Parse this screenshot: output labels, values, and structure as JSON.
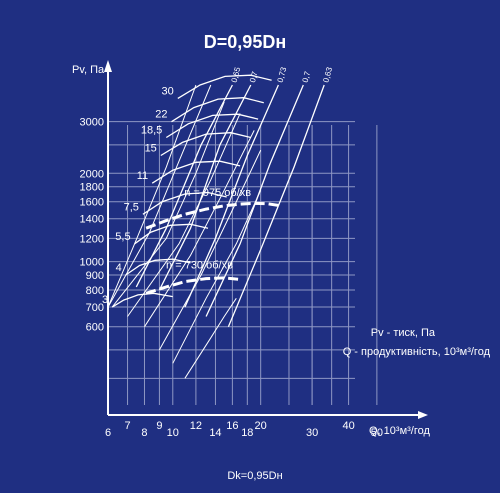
{
  "chart_data": {
    "type": "line",
    "title": "D=0,95Dн",
    "xlabel": "Q, 10³м³/год",
    "ylabel": "Pv, Па",
    "x_scale": "log",
    "y_scale": "log",
    "xlim": [
      6,
      60
    ],
    "ylim": [
      300,
      4000
    ],
    "grid": true,
    "x_ticks": [
      {
        "value": 6,
        "label": "6",
        "row": 0
      },
      {
        "value": 7,
        "label": "7",
        "row": -1
      },
      {
        "value": 8,
        "label": "8",
        "row": 0
      },
      {
        "value": 9,
        "label": "9",
        "row": -1
      },
      {
        "value": 10,
        "label": "10",
        "row": 0
      },
      {
        "value": 12,
        "label": "12",
        "row": -1
      },
      {
        "value": 14,
        "label": "14",
        "row": 0
      },
      {
        "value": 16,
        "label": "16",
        "row": -1
      },
      {
        "value": 18,
        "label": "18",
        "row": 0
      },
      {
        "value": 20,
        "label": "20",
        "row": -1
      },
      {
        "value": 30,
        "label": "30",
        "row": 0
      },
      {
        "value": 40,
        "label": "40",
        "row": -1
      },
      {
        "value": 50,
        "label": "50",
        "row": 0
      }
    ],
    "y_ticks": [
      {
        "value": 600,
        "label": "600"
      },
      {
        "value": 700,
        "label": "700"
      },
      {
        "value": 800,
        "label": "800"
      },
      {
        "value": 900,
        "label": "900"
      },
      {
        "value": 1000,
        "label": "1000"
      },
      {
        "value": 1200,
        "label": "1200"
      },
      {
        "value": 1400,
        "label": "1400"
      },
      {
        "value": 1600,
        "label": "1600"
      },
      {
        "value": 1800,
        "label": "1800"
      },
      {
        "value": 2000,
        "label": "2000"
      },
      {
        "value": 3000,
        "label": "3000"
      }
    ],
    "legend_lines": [
      "Pv - тиск, Па",
      "Q - продуктивність, 10³м³/год"
    ],
    "footer": "Dk=0,95Dн",
    "series": [
      {
        "name": "n = 975 об/хв",
        "style": "dashed",
        "x": [
          8.1,
          9.5,
          11,
          13,
          15,
          17,
          19,
          21,
          23
        ],
        "y": [
          1300,
          1380,
          1450,
          1510,
          1550,
          1570,
          1580,
          1575,
          1555
        ]
      },
      {
        "name": "n = 730 об/хв",
        "style": "dashed",
        "x": [
          8.1,
          9.5,
          11,
          13,
          15,
          17
        ],
        "y": [
          780,
          820,
          855,
          875,
          880,
          870
        ]
      }
    ],
    "power_curves": [
      {
        "label": "3",
        "x": [
          6.2,
          6.8,
          7.6,
          8.6,
          10
        ],
        "y": [
          700,
          740,
          770,
          780,
          760
        ]
      },
      {
        "label": "4",
        "x": [
          6.9,
          7.7,
          8.7,
          10,
          11.5
        ],
        "y": [
          900,
          970,
          1010,
          1020,
          990
        ]
      },
      {
        "label": "5,5",
        "x": [
          7.4,
          8.4,
          9.8,
          11.5,
          13.2
        ],
        "y": [
          1150,
          1260,
          1330,
          1340,
          1300
        ]
      },
      {
        "label": "7,5",
        "x": [
          7.9,
          9.2,
          11,
          13.2,
          15.3
        ],
        "y": [
          1450,
          1600,
          1700,
          1720,
          1660
        ]
      },
      {
        "label": "11",
        "x": [
          8.5,
          10,
          12,
          14.5,
          17
        ],
        "y": [
          1850,
          2050,
          2180,
          2200,
          2120
        ]
      },
      {
        "label": "15",
        "x": [
          9.1,
          10.8,
          13,
          15.8,
          18.5
        ],
        "y": [
          2300,
          2550,
          2720,
          2750,
          2650
        ]
      },
      {
        "label": "18,5",
        "x": [
          9.5,
          11.3,
          13.7,
          16.7,
          19.6
        ],
        "y": [
          2650,
          2950,
          3150,
          3180,
          3060
        ]
      },
      {
        "label": "22",
        "x": [
          9.9,
          11.8,
          14.3,
          17.5,
          20.5
        ],
        "y": [
          3000,
          3350,
          3580,
          3620,
          3480
        ]
      },
      {
        "label": "30",
        "x": [
          10.4,
          12.4,
          15.1,
          18.5,
          21.8
        ],
        "y": [
          3600,
          4000,
          4280,
          4320,
          4150
        ]
      }
    ],
    "efficiency_lines": [
      {
        "label": "0,65",
        "x": [
          7.5,
          9.5,
          12.5,
          16
        ],
        "y": [
          820,
          1300,
          2500,
          4000
        ]
      },
      {
        "label": "0,7",
        "x": [
          9,
          11.5,
          14.5,
          18.5
        ],
        "y": [
          800,
          1300,
          2500,
          4000
        ]
      },
      {
        "label": "0,73",
        "x": [
          11,
          14,
          18,
          23
        ],
        "y": [
          700,
          1200,
          2300,
          4000
        ]
      },
      {
        "label": "0,7",
        "x": [
          13,
          17,
          21.5,
          28
        ],
        "y": [
          650,
          1150,
          2150,
          4000
        ]
      },
      {
        "label": "0,63",
        "x": [
          15.5,
          20,
          26,
          33
        ],
        "y": [
          600,
          1100,
          2100,
          4000
        ]
      }
    ],
    "pressure_rays": [
      {
        "x": [
          6,
          7.4,
          9.5,
          12
        ],
        "y": [
          700,
          1150,
          2100,
          4000
        ]
      },
      {
        "x": [
          6,
          8.3,
          10.5,
          13.5
        ],
        "y": [
          700,
          1250,
          2200,
          4000
        ]
      },
      {
        "x": [
          6.2,
          9.5,
          12,
          15
        ],
        "y": [
          700,
          1200,
          2000,
          3500
        ]
      },
      {
        "x": [
          7,
          10.5,
          13.5,
          17
        ],
        "y": [
          650,
          1150,
          1900,
          3200
        ]
      },
      {
        "x": [
          8,
          11.5,
          15,
          19
        ],
        "y": [
          600,
          1050,
          1750,
          2800
        ]
      },
      {
        "x": [
          9,
          12.5,
          16,
          20
        ],
        "y": [
          500,
          900,
          1500,
          2400
        ]
      },
      {
        "x": [
          10,
          13,
          16.5,
          20
        ],
        "y": [
          450,
          750,
          1150,
          1750
        ]
      },
      {
        "x": [
          11,
          13.5,
          15,
          16.5
        ],
        "y": [
          400,
          550,
          650,
          750
        ]
      }
    ]
  }
}
